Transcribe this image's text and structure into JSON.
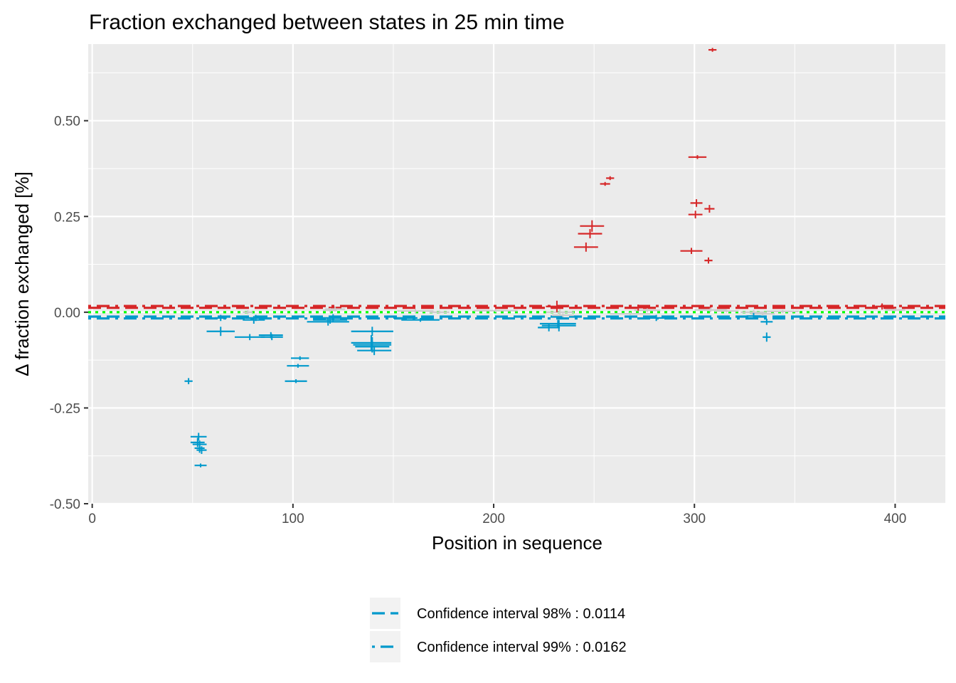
{
  "chart_data": {
    "type": "scatter",
    "title": "Fraction exchanged between states in 25 min time",
    "xlabel": "Position in sequence",
    "ylabel": "Δ fraction exchanged [%]",
    "xlim": [
      -2,
      425
    ],
    "ylim": [
      -0.5,
      0.7
    ],
    "x_ticks": [
      0,
      100,
      200,
      300,
      400
    ],
    "x_tick_labels": [
      "0",
      "100",
      "200",
      "300",
      "400"
    ],
    "y_ticks": [
      -0.5,
      -0.25,
      0.0,
      0.25,
      0.5
    ],
    "y_tick_labels": [
      "-0.50",
      "-0.25",
      "0.00",
      "0.25",
      "0.50"
    ],
    "grid": true,
    "colors": {
      "significant_increase": "#d62728",
      "significant_decrease": "#0099cc",
      "not_significant": "#cccccc",
      "zero_line": "#00ff00",
      "panel_background": "#ebebeb",
      "grid": "#ffffff"
    },
    "reference_lines": [
      {
        "y": 0.0114,
        "color": "#d62728",
        "style": "dashed"
      },
      {
        "y": -0.0114,
        "color": "#0099cc",
        "style": "dashed"
      },
      {
        "y": 0.0162,
        "color": "#d62728",
        "style": "dotdash"
      },
      {
        "y": -0.0162,
        "color": "#0099cc",
        "style": "dotdash"
      },
      {
        "y": 0.0,
        "color": "#00ff00",
        "style": "dotted"
      }
    ],
    "series": [
      {
        "group": "decrease",
        "color": "#0099cc",
        "points": [
          {
            "x_start": 46,
            "x_end": 50,
            "y": -0.18,
            "err": 0.008
          },
          {
            "x_start": 49,
            "x_end": 57,
            "y": -0.325,
            "err": 0.01
          },
          {
            "x_start": 49,
            "x_end": 56,
            "y": -0.34,
            "err": 0.012
          },
          {
            "x_start": 50,
            "x_end": 57,
            "y": -0.345,
            "err": 0.01
          },
          {
            "x_start": 51,
            "x_end": 56,
            "y": -0.355,
            "err": 0.012
          },
          {
            "x_start": 52,
            "x_end": 57,
            "y": -0.36,
            "err": 0.01
          },
          {
            "x_start": 51,
            "x_end": 57,
            "y": -0.4,
            "err": 0.005
          },
          {
            "x_start": 57,
            "x_end": 71,
            "y": -0.05,
            "err": 0.012
          },
          {
            "x_start": 61,
            "x_end": 67,
            "y": -0.015,
            "err": 0.008
          },
          {
            "x_start": 71,
            "x_end": 86,
            "y": -0.065,
            "err": 0.008
          },
          {
            "x_start": 75,
            "x_end": 86,
            "y": -0.02,
            "err": 0.01
          },
          {
            "x_start": 76,
            "x_end": 87,
            "y": -0.015,
            "err": 0.008
          },
          {
            "x_start": 83,
            "x_end": 95,
            "y": -0.06,
            "err": 0.008
          },
          {
            "x_start": 84,
            "x_end": 95,
            "y": -0.065,
            "err": 0.008
          },
          {
            "x_start": 96,
            "x_end": 107,
            "y": -0.18,
            "err": 0.005
          },
          {
            "x_start": 97,
            "x_end": 108,
            "y": -0.14,
            "err": 0.005
          },
          {
            "x_start": 99,
            "x_end": 108,
            "y": -0.12,
            "err": 0.005
          },
          {
            "x_start": 107,
            "x_end": 128,
            "y": -0.025,
            "err": 0.01
          },
          {
            "x_start": 110,
            "x_end": 127,
            "y": -0.02,
            "err": 0.01
          },
          {
            "x_start": 112,
            "x_end": 128,
            "y": -0.015,
            "err": 0.01
          },
          {
            "x_start": 129,
            "x_end": 150,
            "y": -0.05,
            "err": 0.012
          },
          {
            "x_start": 129,
            "x_end": 149,
            "y": -0.08,
            "err": 0.02
          },
          {
            "x_start": 130,
            "x_end": 149,
            "y": -0.085,
            "err": 0.02
          },
          {
            "x_start": 131,
            "x_end": 148,
            "y": -0.09,
            "err": 0.015
          },
          {
            "x_start": 132,
            "x_end": 149,
            "y": -0.1,
            "err": 0.012
          },
          {
            "x_start": 150,
            "x_end": 162,
            "y": -0.015,
            "err": 0.005
          },
          {
            "x_start": 154,
            "x_end": 173,
            "y": -0.02,
            "err": 0.005
          },
          {
            "x_start": 222,
            "x_end": 233,
            "y": -0.04,
            "err": 0.01
          },
          {
            "x_start": 223,
            "x_end": 241,
            "y": -0.03,
            "err": 0.01
          },
          {
            "x_start": 224,
            "x_end": 241,
            "y": -0.035,
            "err": 0.015
          },
          {
            "x_start": 277,
            "x_end": 285,
            "y": -0.015,
            "err": 0.008
          },
          {
            "x_start": 326,
            "x_end": 333,
            "y": -0.01,
            "err": 0.008
          },
          {
            "x_start": 333,
            "x_end": 339,
            "y": -0.025,
            "err": 0.008
          },
          {
            "x_start": 334,
            "x_end": 338,
            "y": -0.065,
            "err": 0.012
          }
        ]
      },
      {
        "group": "increase",
        "color": "#d62728",
        "points": [
          {
            "x_start": 240,
            "x_end": 252,
            "y": 0.17,
            "err": 0.012
          },
          {
            "x_start": 242,
            "x_end": 254,
            "y": 0.205,
            "err": 0.012
          },
          {
            "x_start": 243,
            "x_end": 255,
            "y": 0.225,
            "err": 0.015
          },
          {
            "x_start": 253,
            "x_end": 258,
            "y": 0.335,
            "err": 0.005
          },
          {
            "x_start": 256,
            "x_end": 260,
            "y": 0.35,
            "err": 0.005
          },
          {
            "x_start": 293,
            "x_end": 304,
            "y": 0.16,
            "err": 0.008
          },
          {
            "x_start": 297,
            "x_end": 304,
            "y": 0.255,
            "err": 0.01
          },
          {
            "x_start": 298,
            "x_end": 304,
            "y": 0.285,
            "err": 0.01
          },
          {
            "x_start": 297,
            "x_end": 306,
            "y": 0.405,
            "err": 0.005
          },
          {
            "x_start": 305,
            "x_end": 309,
            "y": 0.135,
            "err": 0.008
          },
          {
            "x_start": 305,
            "x_end": 310,
            "y": 0.27,
            "err": 0.01
          },
          {
            "x_start": 307,
            "x_end": 311,
            "y": 0.685,
            "err": 0.005
          },
          {
            "x_start": 226,
            "x_end": 237,
            "y": 0.015,
            "err": 0.015
          },
          {
            "x_start": 268,
            "x_end": 276,
            "y": 0.012,
            "err": 0.008
          },
          {
            "x_start": 390,
            "x_end": 397,
            "y": 0.015,
            "err": 0.008
          }
        ]
      },
      {
        "group": "not significant",
        "color": "#cccccc",
        "points": [
          {
            "x_start": 75,
            "x_end": 80,
            "y": 0.0,
            "err": 0.005
          },
          {
            "x_start": 115,
            "x_end": 122,
            "y": 0.005,
            "err": 0.006
          },
          {
            "x_start": 116,
            "x_end": 126,
            "y": 0.008,
            "err": 0.006
          },
          {
            "x_start": 152,
            "x_end": 170,
            "y": 0.003,
            "err": 0.005
          },
          {
            "x_start": 168,
            "x_end": 178,
            "y": 0.0,
            "err": 0.004
          },
          {
            "x_start": 190,
            "x_end": 212,
            "y": 0.004,
            "err": 0.004
          },
          {
            "x_start": 226,
            "x_end": 240,
            "y": 0.0,
            "err": 0.008
          },
          {
            "x_start": 229,
            "x_end": 240,
            "y": -0.008,
            "err": 0.005
          },
          {
            "x_start": 258,
            "x_end": 278,
            "y": -0.004,
            "err": 0.004
          },
          {
            "x_start": 270,
            "x_end": 283,
            "y": 0.005,
            "err": 0.005
          },
          {
            "x_start": 300,
            "x_end": 316,
            "y": 0.006,
            "err": 0.006
          },
          {
            "x_start": 310,
            "x_end": 322,
            "y": 0.003,
            "err": 0.004
          },
          {
            "x_start": 323,
            "x_end": 336,
            "y": 0.0,
            "err": 0.006
          },
          {
            "x_start": 328,
            "x_end": 340,
            "y": -0.004,
            "err": 0.005
          },
          {
            "x_start": 336,
            "x_end": 352,
            "y": 0.002,
            "err": 0.004
          },
          {
            "x_start": 395,
            "x_end": 405,
            "y": 0.006,
            "err": 0.004
          }
        ]
      }
    ],
    "legend": {
      "position": "bottom",
      "entries": [
        {
          "label": "Confidence interval 98% : 0.0114",
          "color": "#0099cc",
          "style": "dashed"
        },
        {
          "label": "Confidence interval 99% : 0.0162",
          "color": "#0099cc",
          "style": "dotdash"
        }
      ]
    }
  }
}
